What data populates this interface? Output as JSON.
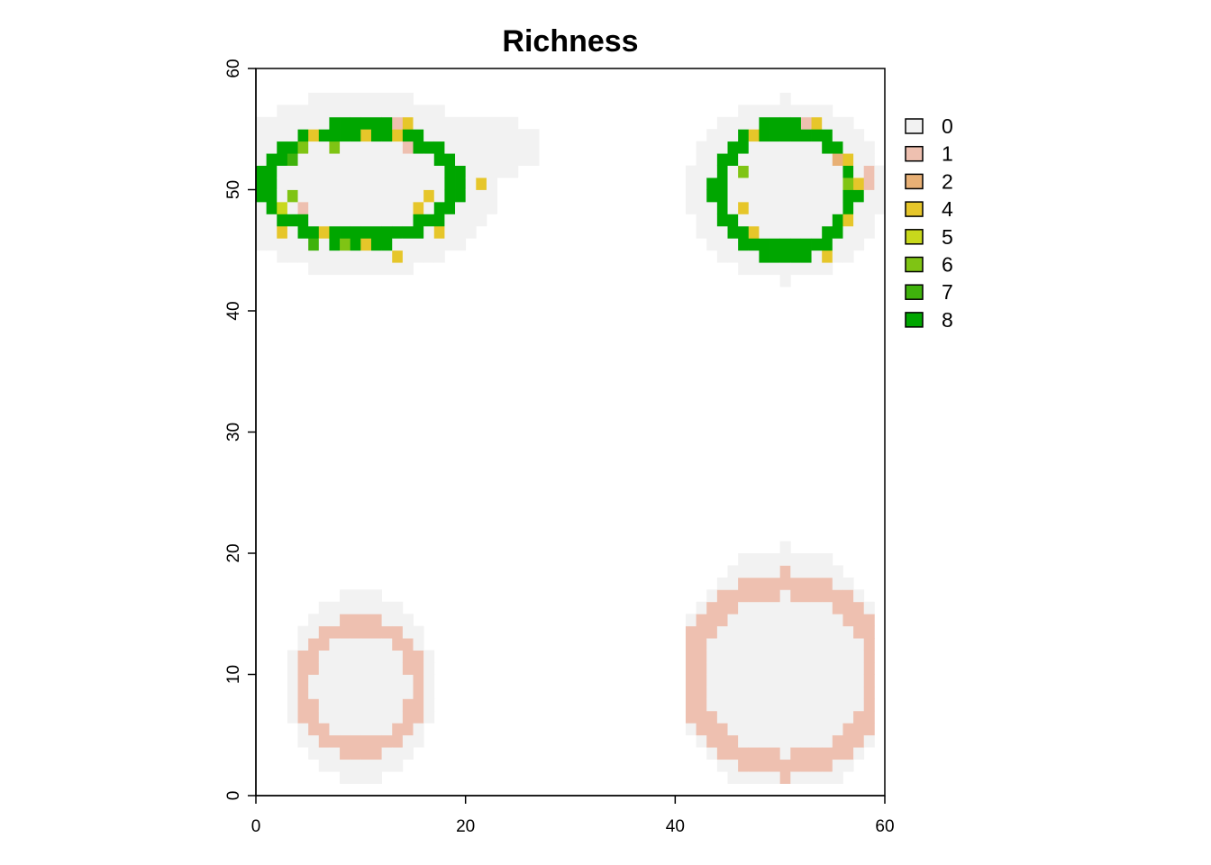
{
  "chart_data": {
    "type": "heatmap",
    "title": "Richness",
    "xlabel": "",
    "ylabel": "",
    "xlim": [
      0,
      60
    ],
    "ylim": [
      0,
      60
    ],
    "x_ticks": [
      0,
      20,
      40,
      60
    ],
    "y_ticks": [
      0,
      10,
      20,
      30,
      40,
      50,
      60
    ],
    "grid": false,
    "legend_position": "right",
    "legend": [
      {
        "label": "0",
        "color": "#f2f2f2"
      },
      {
        "label": "1",
        "color": "#eec0b0"
      },
      {
        "label": "2",
        "color": "#e8b075"
      },
      {
        "label": "4",
        "color": "#e6c62a"
      },
      {
        "label": "5",
        "color": "#c8d81c"
      },
      {
        "label": "6",
        "color": "#7fc414"
      },
      {
        "label": "7",
        "color": "#3fb20c"
      },
      {
        "label": "8",
        "color": "#00a600"
      }
    ],
    "patches": [
      {
        "location": "top-left",
        "center": [
          10,
          50.5
        ],
        "background": [
          13,
          7.5
        ],
        "ring": [
          9,
          4.5
        ],
        "ring_width": 1.5,
        "ring_value": 8,
        "shoulder": {
          "x": 22,
          "y": 53.5,
          "rx": 5,
          "ry": 2.5
        }
      },
      {
        "location": "top-right",
        "center": [
          50.5,
          50
        ],
        "background": [
          9.5,
          7.5
        ],
        "ring": [
          6.5,
          5
        ],
        "ring_width": 1.5,
        "ring_value": 8
      },
      {
        "location": "bottom-left",
        "center": [
          10,
          9
        ],
        "background": [
          7,
          8
        ],
        "ring": [
          5.5,
          5
        ],
        "ring_width": 1.5,
        "ring_value": 1
      },
      {
        "location": "bottom-right",
        "center": [
          50.5,
          10
        ],
        "background": [
          10,
          10.5
        ],
        "ring": [
          9,
          7.5
        ],
        "ring_width": 2,
        "ring_value": 1,
        "clip_x": [
          39,
          59
        ],
        "clip_y": [
          1,
          21
        ]
      }
    ],
    "accent_cells": [
      {
        "x": 2,
        "y": 46,
        "value": 4
      },
      {
        "x": 2,
        "y": 48,
        "value": 5
      },
      {
        "x": 3,
        "y": 49,
        "value": 6
      },
      {
        "x": 3,
        "y": 52,
        "value": 7
      },
      {
        "x": 4,
        "y": 48,
        "value": 1
      },
      {
        "x": 4,
        "y": 53,
        "value": 6
      },
      {
        "x": 5,
        "y": 45,
        "value": 7
      },
      {
        "x": 5,
        "y": 54,
        "value": 4
      },
      {
        "x": 6,
        "y": 46,
        "value": 4
      },
      {
        "x": 7,
        "y": 53,
        "value": 6
      },
      {
        "x": 8,
        "y": 45,
        "value": 6
      },
      {
        "x": 10,
        "y": 45,
        "value": 4
      },
      {
        "x": 10,
        "y": 54,
        "value": 4
      },
      {
        "x": 13,
        "y": 44,
        "value": 4
      },
      {
        "x": 13,
        "y": 54,
        "value": 4
      },
      {
        "x": 13,
        "y": 55,
        "value": 1
      },
      {
        "x": 14,
        "y": 55,
        "value": 4
      },
      {
        "x": 14,
        "y": 53,
        "value": 1
      },
      {
        "x": 15,
        "y": 48,
        "value": 4
      },
      {
        "x": 16,
        "y": 49,
        "value": 4
      },
      {
        "x": 17,
        "y": 46,
        "value": 4
      },
      {
        "x": 21,
        "y": 50,
        "value": 4
      },
      {
        "x": 46,
        "y": 48,
        "value": 4
      },
      {
        "x": 46,
        "y": 51,
        "value": 6
      },
      {
        "x": 47,
        "y": 46,
        "value": 4
      },
      {
        "x": 47,
        "y": 54,
        "value": 4
      },
      {
        "x": 52,
        "y": 55,
        "value": 1
      },
      {
        "x": 53,
        "y": 55,
        "value": 4
      },
      {
        "x": 54,
        "y": 44,
        "value": 4
      },
      {
        "x": 55,
        "y": 52,
        "value": 2
      },
      {
        "x": 56,
        "y": 52,
        "value": 4
      },
      {
        "x": 56,
        "y": 50,
        "value": 6
      },
      {
        "x": 56,
        "y": 47,
        "value": 4
      },
      {
        "x": 57,
        "y": 50,
        "value": 4
      },
      {
        "x": 58,
        "y": 50,
        "value": 1
      },
      {
        "x": 58,
        "y": 51,
        "value": 1
      }
    ]
  }
}
